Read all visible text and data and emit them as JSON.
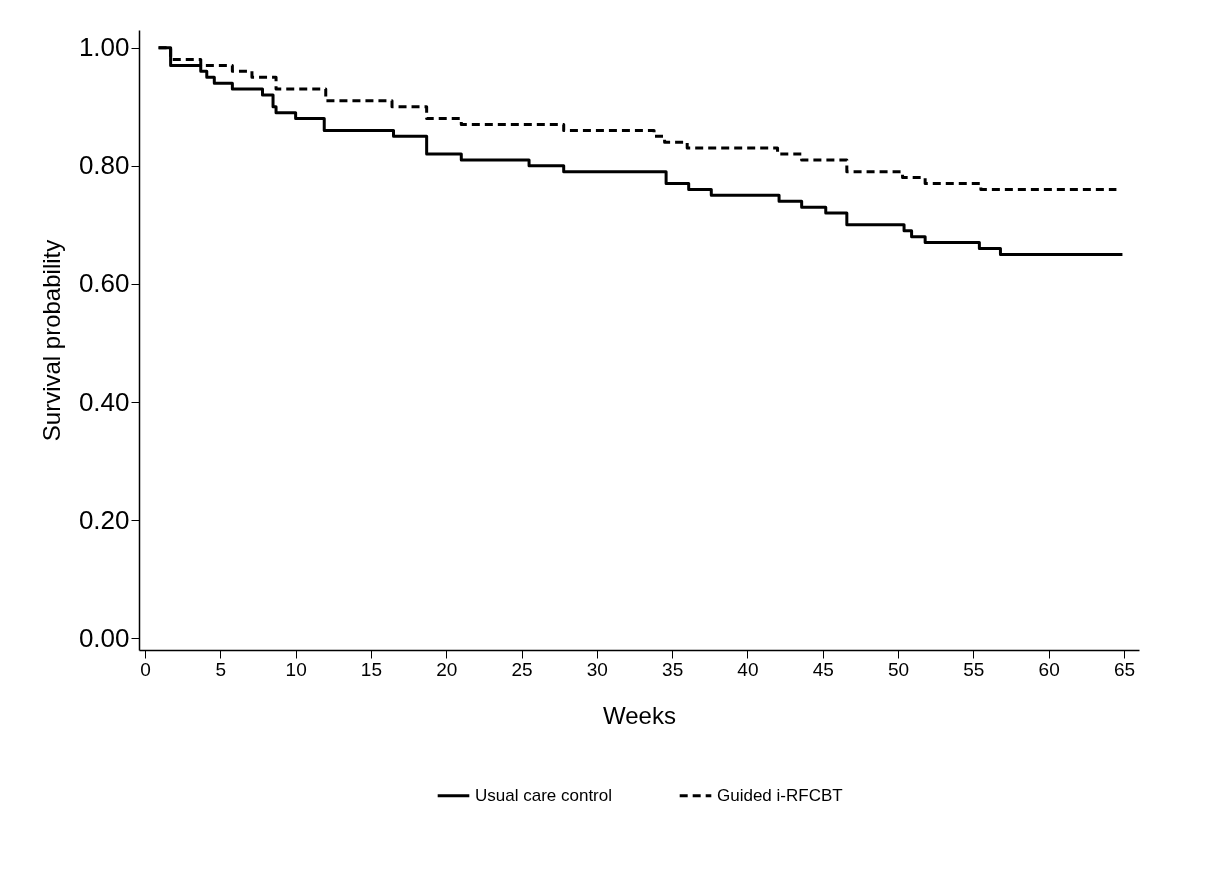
{
  "chart_data": {
    "type": "step",
    "xlabel": "Weeks",
    "ylabel": "Survival probability",
    "xlim": [
      -0.4,
      66
    ],
    "ylim": [
      -0.02,
      1.03
    ],
    "xticks": [
      0,
      5,
      10,
      15,
      20,
      25,
      30,
      35,
      40,
      45,
      50,
      55,
      60,
      65
    ],
    "yticks": [
      {
        "value": 0,
        "label": "0.00"
      },
      {
        "value": 0.2,
        "label": "0.20"
      },
      {
        "value": 0.4,
        "label": "0.40"
      },
      {
        "value": 0.6,
        "label": "0.60"
      },
      {
        "value": 0.8,
        "label": "0.80"
      },
      {
        "value": 1,
        "label": "1.00"
      }
    ],
    "grid": false,
    "legend": "bottom",
    "series": [
      {
        "name": "Usual care control",
        "color": "#000000",
        "line_style": "solid",
        "x": [
          0.9,
          1.7,
          2.8,
          3.7,
          4.1,
          4.6,
          5.8,
          7.3,
          7.8,
          8.5,
          8.7,
          9.2,
          10,
          11.9,
          14.7,
          16.5,
          18.7,
          21,
          25.5,
          27.8,
          33.6,
          34.6,
          36.1,
          37.6,
          42.1,
          43.6,
          45.2,
          46.6,
          50.4,
          50.9,
          51.8,
          55.4,
          56.8,
          64.9
        ],
        "values": [
          1.0,
          0.97,
          0.97,
          0.96,
          0.95,
          0.94,
          0.93,
          0.93,
          0.92,
          0.9,
          0.89,
          0.89,
          0.88,
          0.86,
          0.86,
          0.85,
          0.82,
          0.81,
          0.8,
          0.79,
          0.79,
          0.77,
          0.76,
          0.75,
          0.74,
          0.73,
          0.72,
          0.7,
          0.69,
          0.68,
          0.67,
          0.66,
          0.65,
          0.65
        ]
      },
      {
        "name": "Guided i-RFCBT",
        "color": "#000000",
        "line_style": "dashed",
        "x": [
          0.9,
          1.7,
          2.9,
          3.7,
          4.3,
          5.8,
          7.1,
          8,
          8.7,
          9.6,
          12,
          16.4,
          18.7,
          21,
          25.5,
          27.8,
          33.8,
          34.5,
          36,
          37.5,
          42,
          43.6,
          45.3,
          46.6,
          50.3,
          51.8,
          55.5,
          56.9,
          64.5
        ],
        "values": [
          1.0,
          0.98,
          0.98,
          0.97,
          0.97,
          0.96,
          0.95,
          0.95,
          0.93,
          0.93,
          0.91,
          0.9,
          0.88,
          0.87,
          0.87,
          0.86,
          0.85,
          0.84,
          0.83,
          0.83,
          0.82,
          0.81,
          0.81,
          0.79,
          0.78,
          0.77,
          0.76,
          0.76,
          0.76
        ]
      }
    ]
  }
}
